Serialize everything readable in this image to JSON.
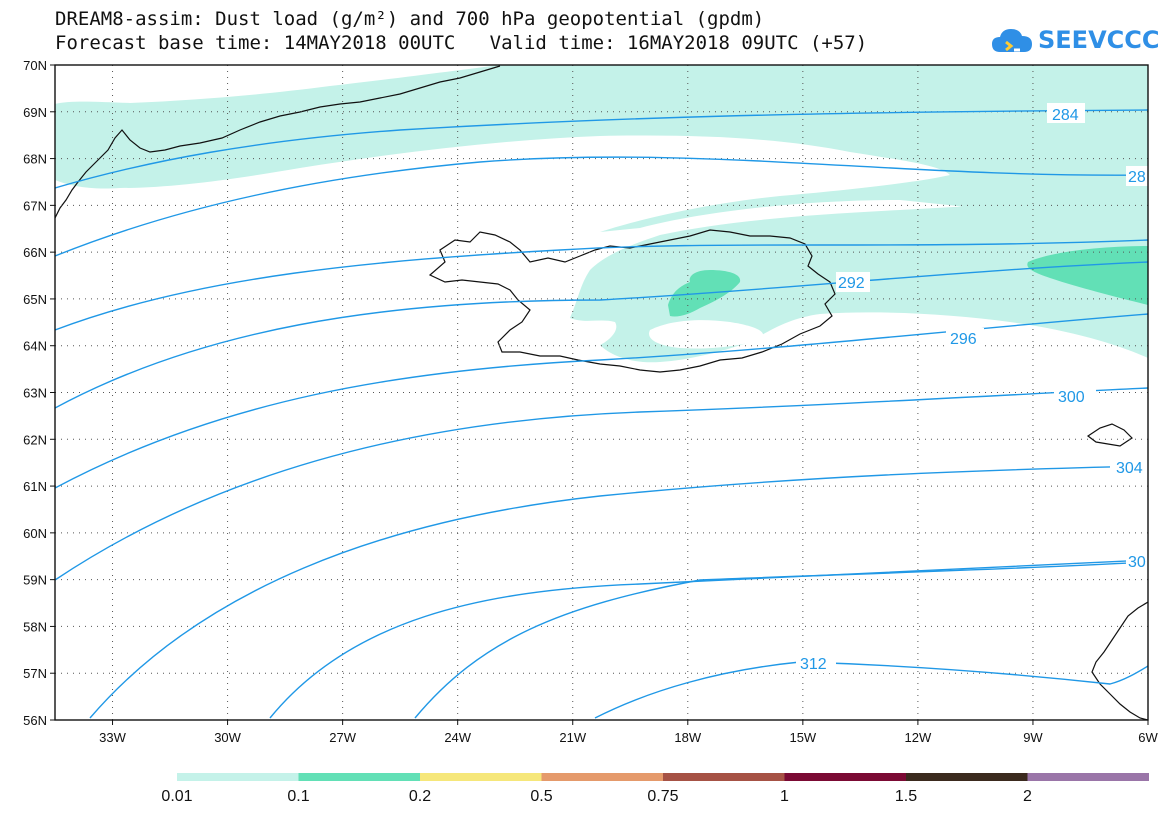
{
  "title": {
    "line1": "DREAM8-assim: Dust load (g/m²) and 700 hPa geopotential (gpdm)",
    "line2": "Forecast base time: 14MAY2018 00UTC   Valid time: 16MAY2018 09UTC (+57)"
  },
  "logo": {
    "text": "SEEVCCC",
    "icon": "cloud-icon",
    "color": "#2f8fe6"
  },
  "map": {
    "lat_labels": [
      "70N",
      "69N",
      "68N",
      "67N",
      "66N",
      "65N",
      "64N",
      "63N",
      "62N",
      "61N",
      "60N",
      "59N",
      "58N",
      "57N",
      "56N"
    ],
    "lon_labels": [
      "33W",
      "30W",
      "27W",
      "24W",
      "21W",
      "18W",
      "15W",
      "12W",
      "9W",
      "6W"
    ],
    "lat_range": [
      56,
      70
    ],
    "lon_range": [
      -34.5,
      -6
    ],
    "grid": "dotted",
    "contour_color": "#2098e6",
    "contour_labels": [
      "284",
      "28",
      "292",
      "296",
      "300",
      "304",
      "30",
      "312"
    ]
  },
  "colorbar": {
    "colors": [
      "#c4f2e9",
      "#62e0b6",
      "#f6e77a",
      "#e59a6b",
      "#a65245",
      "#7b0a34",
      "#3b2a1e",
      "#9a75a8"
    ],
    "labels": [
      "0.01",
      "0.1",
      "0.2",
      "0.5",
      "0.75",
      "1",
      "1.5",
      "2"
    ]
  }
}
